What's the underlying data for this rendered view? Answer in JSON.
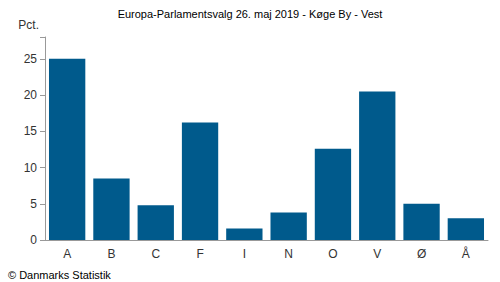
{
  "chart_data": {
    "type": "bar",
    "title": "Europa-Parlamentsvalg 26. maj 2019 - Køge By - Vest",
    "y_label": "Pct.",
    "source": "© Danmarks Statistik",
    "categories": [
      "A",
      "B",
      "C",
      "F",
      "I",
      "N",
      "O",
      "V",
      "Ø",
      "Å"
    ],
    "values": [
      25.0,
      8.5,
      4.8,
      16.2,
      1.6,
      3.8,
      12.6,
      20.5,
      5.0,
      3.0
    ],
    "color": "#005a8c",
    "ylim": [
      0,
      28
    ],
    "yticks": [
      0,
      5,
      10,
      15,
      20,
      25
    ],
    "grid": false
  }
}
